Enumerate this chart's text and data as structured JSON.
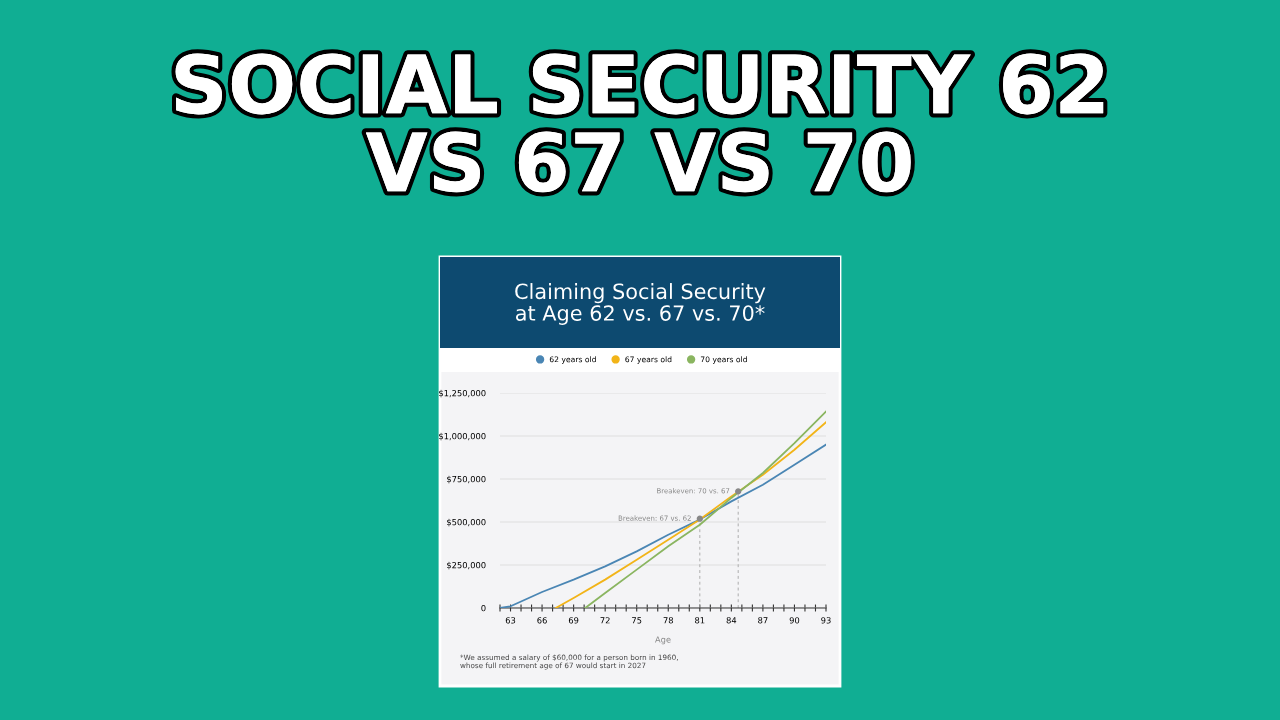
{
  "chart_data": {
    "type": "line",
    "title": "SOCIAL SECURITY 62\nVS 67 VS 70",
    "subtitle": "Claiming Social Security\nat Age 62 vs. 67 vs. 70*",
    "xlabel": "Age",
    "series": [
      {
        "name": "62 years old",
        "color": "#4a86b4",
        "x": [
          62,
          63,
          66,
          69,
          72,
          75,
          78,
          81,
          84,
          87,
          90,
          93
        ],
        "values": [
          0,
          10000,
          93000,
          165000,
          242000,
          329000,
          426000,
          514000,
          620000,
          717000,
          833000,
          950000
        ]
      },
      {
        "name": "67 years old",
        "color": "#f2b418",
        "x": [
          67.3,
          69,
          72,
          75,
          78,
          81,
          84,
          87,
          90,
          93
        ],
        "values": [
          0,
          58000,
          165000,
          281000,
          397000,
          514000,
          649000,
          775000,
          920000,
          1080000
        ]
      },
      {
        "name": "70 years old",
        "color": "#8ab560",
        "x": [
          70.1,
          72,
          75,
          78,
          81,
          84,
          87,
          90,
          93
        ],
        "values": [
          0,
          87000,
          223000,
          359000,
          484000,
          640000,
          785000,
          959000,
          1143000
        ]
      }
    ],
    "xlim": [
      62,
      93
    ],
    "xticks": [
      {
        "value": 62,
        "label": null
      },
      63,
      {
        "value": 64,
        "label": null
      },
      {
        "value": 65,
        "label": null
      },
      66,
      {
        "value": 67,
        "label": null
      },
      {
        "value": 68,
        "label": null
      },
      69,
      {
        "value": 70,
        "label": null
      },
      {
        "value": 71,
        "label": null
      },
      72,
      {
        "value": 73,
        "label": null
      },
      {
        "value": 74,
        "label": null
      },
      75,
      {
        "value": 76,
        "label": null
      },
      {
        "value": 77,
        "label": null
      },
      78,
      {
        "value": 79,
        "label": null
      },
      {
        "value": 80,
        "label": null
      },
      81,
      {
        "value": 82,
        "label": null
      },
      {
        "value": 83,
        "label": null
      },
      84,
      {
        "value": 85,
        "label": null
      },
      {
        "value": 86,
        "label": null
      },
      87,
      {
        "value": 88,
        "label": null
      },
      {
        "value": 89,
        "label": null
      },
      90,
      {
        "value": 91,
        "label": null
      },
      {
        "value": 92,
        "label": null
      },
      93
    ],
    "ylim": [
      0,
      1250000
    ],
    "yticks": [
      0,
      {
        "value": 250000,
        "label": "$250,000"
      },
      {
        "value": 500000,
        "label": "$500,000"
      },
      {
        "value": 750000,
        "label": "$750,000"
      },
      {
        "value": 1000000,
        "label": "$1,000,000"
      },
      {
        "value": 1250000,
        "label": "$1,250,000"
      }
    ],
    "ref_lines": [
      {
        "axis": "x",
        "value": 81,
        "color": "#aaaaaa",
        "line_style": "dashed"
      },
      {
        "axis": "x",
        "value": 84.65,
        "color": "#aaaaaa",
        "line_style": "dashed"
      }
    ],
    "grid": "y",
    "legend": "top",
    "marker": "none",
    "line_style": "solid",
    "annotations": [
      {
        "text": "Breakeven: 67 vs. 62",
        "x": 81,
        "y": 519000
      },
      {
        "text": "Breakeven: 70 vs. 67",
        "x": 84.65,
        "y": 678000
      },
      "*We assumed a salary of $60,000 for a person born in 1960,\nwhose full retirement age of 67 would start in 2027"
    ]
  }
}
